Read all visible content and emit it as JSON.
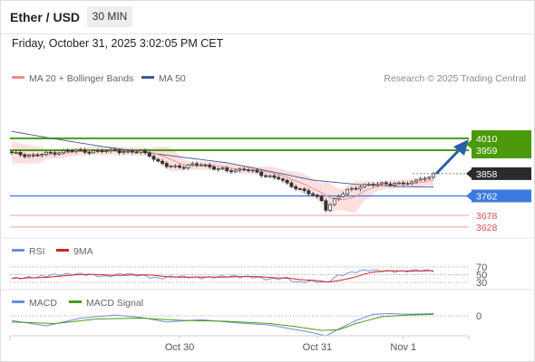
{
  "header": {
    "title": "Ether / USD",
    "interval": "30 MIN",
    "datetime": "Friday, October 31, 2025 3:02:05 PM CET"
  },
  "legend": {
    "ma20": "MA 20 + Bollinger Bands",
    "ma50": "MA 50",
    "credit": "Research © 2025 Trading Central"
  },
  "colors": {
    "ma20": "#f08a8a",
    "bands": "#fbdada",
    "ma50": "#3d5a99",
    "resistance": "#4a9a0a",
    "support": "#3b7ae0",
    "minor_support": "#e05050",
    "arrow": "#2a5fa8",
    "rsi": "#6a8fe0",
    "rsi_ma": "#d42020",
    "macd": "#6a8fe0",
    "macd_signal": "#4a9a0a"
  },
  "levels": [
    {
      "value": 4010,
      "label": "4010",
      "type": "resistance"
    },
    {
      "value": 3959,
      "label": "3959",
      "type": "resistance"
    },
    {
      "value": 3858,
      "label": "3858",
      "type": "last"
    },
    {
      "value": 3762,
      "label": "3762",
      "type": "support"
    },
    {
      "value": 3678,
      "label": "3678",
      "type": "minor_support"
    },
    {
      "value": 3628,
      "label": "3628",
      "type": "minor_support"
    }
  ],
  "rsi_panel": {
    "title": "RSI",
    "ma_label": "9MA",
    "ticks": [
      {
        "value": 70,
        "label": "70"
      },
      {
        "value": 50,
        "label": "50"
      },
      {
        "value": 30,
        "label": "30"
      }
    ]
  },
  "macd_panel": {
    "title": "MACD",
    "signal_label": "MACD Signal",
    "ticks": [
      {
        "value": 0,
        "label": "0"
      }
    ]
  },
  "x_axis": {
    "labels": [
      "Oct 30",
      "Oct 31",
      "Nov 1"
    ]
  },
  "chart_data": {
    "type": "candlestick",
    "title": "Ether / USD",
    "interval": "30 MIN",
    "ylim": [
      3600,
      4060
    ],
    "bars": 99,
    "close_anchors": [
      [
        0,
        3945
      ],
      [
        5,
        3935
      ],
      [
        10,
        3950
      ],
      [
        15,
        3958
      ],
      [
        20,
        3952
      ],
      [
        24,
        3960
      ],
      [
        27,
        3948
      ],
      [
        30,
        3955
      ],
      [
        32,
        3940
      ],
      [
        34,
        3905
      ],
      [
        36,
        3892
      ],
      [
        40,
        3888
      ],
      [
        44,
        3900
      ],
      [
        47,
        3882
      ],
      [
        50,
        3870
      ],
      [
        54,
        3878
      ],
      [
        58,
        3855
      ],
      [
        62,
        3838
      ],
      [
        64,
        3812
      ],
      [
        66,
        3800
      ],
      [
        68,
        3782
      ],
      [
        70,
        3765
      ],
      [
        72,
        3742
      ],
      [
        73,
        3708
      ],
      [
        75,
        3745
      ],
      [
        78,
        3786
      ],
      [
        81,
        3805
      ],
      [
        84,
        3810
      ],
      [
        87,
        3818
      ],
      [
        90,
        3812
      ],
      [
        93,
        3820
      ],
      [
        95,
        3842
      ],
      [
        97,
        3835
      ],
      [
        98,
        3858
      ]
    ],
    "ma50_anchors": [
      [
        0,
        4040
      ],
      [
        10,
        4008
      ],
      [
        20,
        3978
      ],
      [
        30,
        3952
      ],
      [
        40,
        3928
      ],
      [
        50,
        3905
      ],
      [
        60,
        3868
      ],
      [
        70,
        3830
      ],
      [
        80,
        3812
      ],
      [
        90,
        3803
      ],
      [
        98,
        3800
      ]
    ],
    "rsi_anchors": [
      [
        0,
        40
      ],
      [
        6,
        44
      ],
      [
        10,
        50
      ],
      [
        16,
        52
      ],
      [
        22,
        45
      ],
      [
        26,
        53
      ],
      [
        30,
        48
      ],
      [
        34,
        40
      ],
      [
        38,
        46
      ],
      [
        44,
        42
      ],
      [
        50,
        46
      ],
      [
        56,
        44
      ],
      [
        60,
        38
      ],
      [
        64,
        42
      ],
      [
        66,
        30
      ],
      [
        70,
        33
      ],
      [
        73,
        29
      ],
      [
        76,
        48
      ],
      [
        80,
        58
      ],
      [
        83,
        62
      ],
      [
        86,
        60
      ],
      [
        90,
        58
      ],
      [
        94,
        62
      ],
      [
        98,
        60
      ]
    ],
    "rsi_ylim": [
      20,
      80
    ],
    "macd_anchors": [
      [
        0,
        -6
      ],
      [
        8,
        -13
      ],
      [
        16,
        -3
      ],
      [
        24,
        1
      ],
      [
        30,
        -2
      ],
      [
        36,
        -8
      ],
      [
        44,
        -5
      ],
      [
        52,
        -9
      ],
      [
        60,
        -12
      ],
      [
        66,
        -18
      ],
      [
        70,
        -22
      ],
      [
        73,
        -26
      ],
      [
        76,
        -17
      ],
      [
        80,
        -6
      ],
      [
        84,
        2
      ],
      [
        88,
        3
      ],
      [
        92,
        2
      ],
      [
        98,
        3
      ]
    ],
    "signal_anchors": [
      [
        0,
        -8
      ],
      [
        10,
        -10
      ],
      [
        20,
        -4
      ],
      [
        30,
        -3
      ],
      [
        40,
        -6
      ],
      [
        50,
        -7
      ],
      [
        60,
        -10
      ],
      [
        66,
        -14
      ],
      [
        72,
        -19
      ],
      [
        76,
        -18
      ],
      [
        80,
        -10
      ],
      [
        86,
        -1
      ],
      [
        92,
        1
      ],
      [
        98,
        2
      ]
    ],
    "macd_ylim": [
      -30,
      10
    ],
    "x_label_bars": [
      39,
      71,
      91
    ]
  }
}
